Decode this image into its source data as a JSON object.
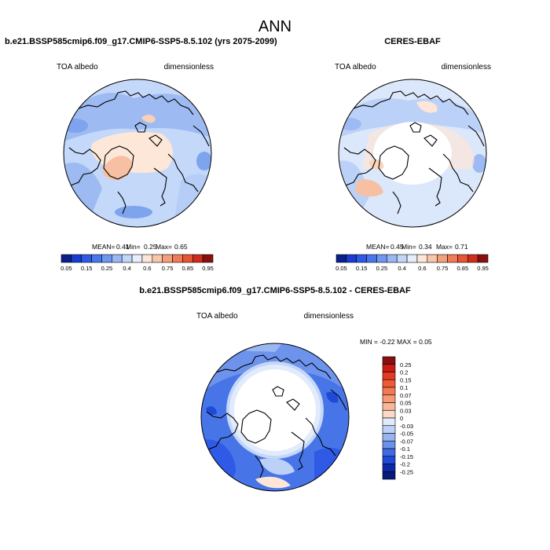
{
  "page_title": "ANN",
  "panels": [
    {
      "title": "b.e21.BSSP585cmip6.f09_g17.CMIP6-SSP5-8.5.102 (yrs 2075-2099)",
      "left_label": "TOA albedo",
      "right_label": "dimensionless",
      "stats": {
        "mean_label": "MEAN=",
        "mean": "0.41",
        "min_label": "Min=",
        "min": "0.25",
        "max_label": "Max=",
        "max": "0.65"
      }
    },
    {
      "title": "CERES-EBAF",
      "left_label": "TOA albedo",
      "right_label": "dimensionless",
      "stats": {
        "mean_label": "MEAN=",
        "mean": "0.45",
        "min_label": "Min=",
        "min": "0.34",
        "max_label": "Max=",
        "max": "0.71"
      }
    },
    {
      "title": "b.e21.BSSP585cmip6.f09_g17.CMIP6-SSP5-8.5.102 - CERES-EBAF",
      "left_label": "TOA albedo",
      "right_label": "dimensionless",
      "stats_text": "MIN = -0.22 MAX = 0.05"
    }
  ],
  "colorbar_abs": {
    "labels": [
      "0.05",
      "0.15",
      "0.25",
      "0.4",
      "0.6",
      "0.75",
      "0.85",
      "0.95"
    ],
    "colors": [
      "#0a1e8c",
      "#1a3cd2",
      "#2f5ae6",
      "#4a76ec",
      "#6e98f0",
      "#99b8f3",
      "#c2d6f8",
      "#e6eefb",
      "#fde6d8",
      "#f8c6a8",
      "#f4a07c",
      "#ee7c58",
      "#e65534",
      "#d02c1c",
      "#8a0f0f"
    ]
  },
  "colorbar_diff": {
    "labels": [
      "0.25",
      "0.2",
      "0.15",
      "0.1",
      "0.07",
      "0.05",
      "0.03",
      "0",
      "-0.03",
      "-0.05",
      "-0.07",
      "-0.1",
      "-0.15",
      "-0.2",
      "-0.25"
    ],
    "colors": [
      "#8a0f0f",
      "#c81c14",
      "#e33a22",
      "#ef5a34",
      "#f27a52",
      "#f59a74",
      "#f8b898",
      "#fbd9c4",
      "#dfeafb",
      "#bcd1f5",
      "#96b4ef",
      "#6a92ea",
      "#3f6ae6",
      "#1f4ad8",
      "#0c2aa8",
      "#061a7a"
    ]
  },
  "chart_data": {
    "type": "heatmap",
    "projection": "north polar stereographic",
    "title": "ANN",
    "panels": [
      {
        "name": "b.e21.BSSP585cmip6.f09_g17.CMIP6-SSP5-8.5.102 (yrs 2075-2099)",
        "variable": "TOA albedo",
        "units": "dimensionless",
        "mean": 0.41,
        "min": 0.25,
        "max": 0.65
      },
      {
        "name": "CERES-EBAF",
        "variable": "TOA albedo",
        "units": "dimensionless",
        "mean": 0.45,
        "min": 0.34,
        "max": 0.71
      },
      {
        "name": "b.e21.BSSP585cmip6.f09_g17.CMIP6-SSP5-8.5.102 - CERES-EBAF",
        "variable": "TOA albedo",
        "units": "dimensionless",
        "min": -0.22,
        "max": 0.05
      }
    ],
    "colorbar_levels_abs": [
      0.05,
      0.1,
      0.15,
      0.2,
      0.25,
      0.3,
      0.4,
      0.5,
      0.6,
      0.7,
      0.75,
      0.8,
      0.85,
      0.9,
      0.95
    ],
    "colorbar_levels_diff": [
      -0.25,
      -0.2,
      -0.15,
      -0.1,
      -0.07,
      -0.05,
      -0.03,
      0,
      0.03,
      0.05,
      0.07,
      0.1,
      0.15,
      0.2,
      0.25
    ]
  }
}
